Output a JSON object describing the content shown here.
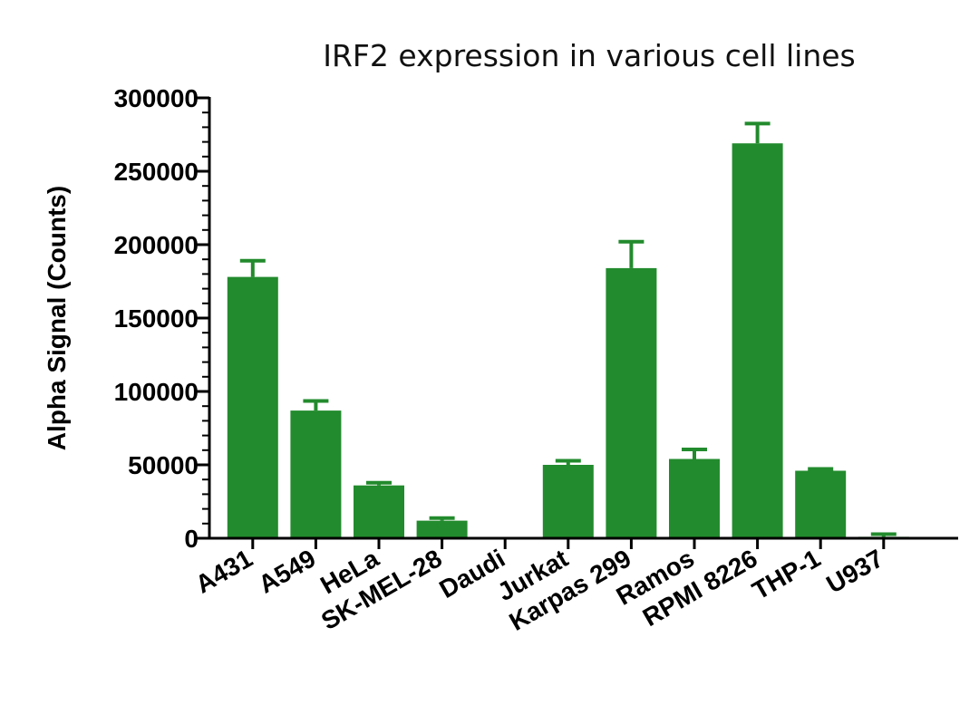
{
  "chart_data": {
    "type": "bar",
    "title": "IRF2 expression in various cell lines",
    "xlabel": "",
    "ylabel": "Alpha Signal (Counts)",
    "ylim": [
      0,
      300000
    ],
    "yticks": [
      "0",
      "50000",
      "100000",
      "150000",
      "200000",
      "250000",
      "300000"
    ],
    "ytick_values": [
      0,
      50000,
      100000,
      150000,
      200000,
      250000,
      300000
    ],
    "minor_ticks_per_major": 5,
    "grid": false,
    "legend": "none",
    "bar_color": "#228B2D",
    "axis_color": "#000000",
    "categories": [
      "A431",
      "A549",
      "HeLa",
      "SK-MEL-28",
      "Daudi",
      "Jurkat",
      "Karpas 299",
      "Ramos",
      "RPMI 8226",
      "THP-1",
      "U937"
    ],
    "values": [
      178000,
      87000,
      36000,
      12000,
      0,
      50000,
      184000,
      54000,
      269000,
      46000,
      1000
    ],
    "errors": [
      11000,
      6500,
      1800,
      1700,
      0,
      2800,
      18000,
      6500,
      13500,
      1200,
      1800
    ]
  }
}
